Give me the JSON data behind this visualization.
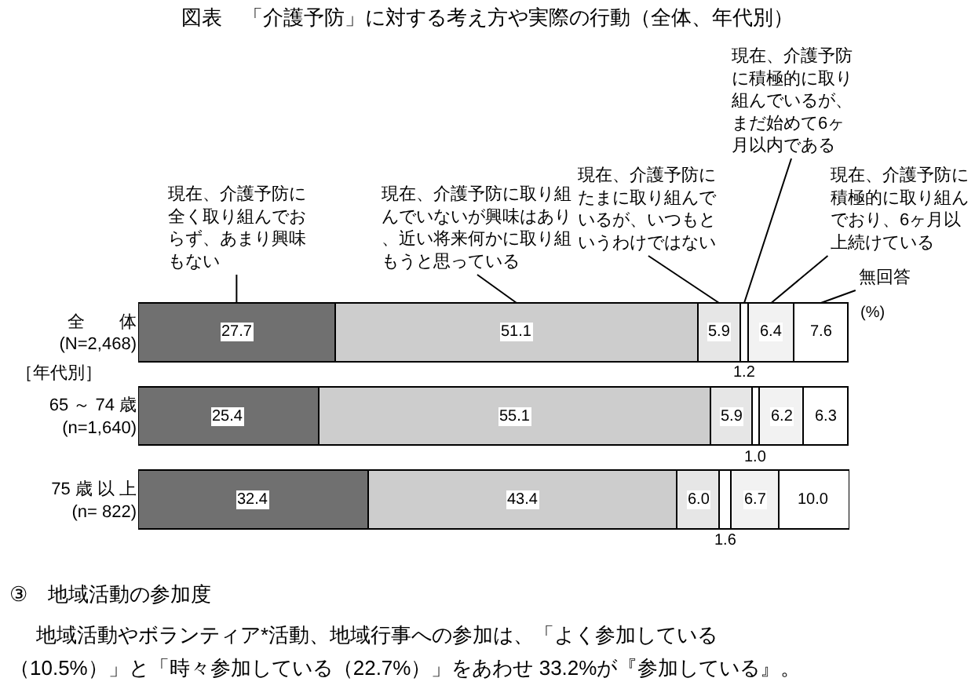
{
  "chart_data": {
    "type": "bar",
    "orientation": "horizontal",
    "stacked": true,
    "title": "図表　「介護予防」に対する考え方や実際の行動（全体、年代別）",
    "categories": [
      "全　　体\n(N=2,468)",
      "65 ～ 74 歳\n(n=1,640)",
      "75 歳 以 上\n(n= 822)"
    ],
    "series": [
      {
        "name": "現在、介護予防に全く取り組んでおらず、あまり興味もない",
        "color": "#707070",
        "values": [
          27.7,
          25.4,
          32.4
        ],
        "value_labels": [
          "27.7",
          "25.4",
          "32.4"
        ]
      },
      {
        "name": "現在、介護予防に取り組んでいないが興味はあり、近い将来何かに取り組もうと思っている",
        "color": "#cdcdcd",
        "values": [
          51.1,
          55.1,
          43.4
        ],
        "value_labels": [
          "51.1",
          "55.1",
          "43.4"
        ]
      },
      {
        "name": "現在、介護予防にたまに取り組んでいるが、いつもというわけではない",
        "color": "#e6e6e6",
        "values": [
          5.9,
          5.9,
          6.0
        ],
        "value_labels": [
          "5.9",
          "5.9",
          "6.0"
        ]
      },
      {
        "name": "現在、介護予防に積極的に取り組んでいるが、まだ始めて6ヶ月以内である",
        "color": "#ffffff",
        "values": [
          1.2,
          1.0,
          1.6
        ],
        "value_labels": [
          "1.2",
          "1.0",
          "1.6"
        ]
      },
      {
        "name": "現在、介護予防に積極的に取り組んでおり、6ヶ月以上続けている",
        "color": "#f2f2f2",
        "values": [
          6.4,
          6.2,
          6.7
        ],
        "value_labels": [
          "6.4",
          "6.2",
          "6.7"
        ]
      },
      {
        "name": "無回答",
        "color": "#ffffff",
        "values": [
          7.6,
          6.3,
          10.0
        ],
        "value_labels": [
          "7.6",
          "6.3",
          "10.0"
        ]
      }
    ],
    "xlim": [
      0,
      100.1
    ],
    "tick_labels": "y",
    "annotations": [
      "［年代別］",
      "(%)",
      "③　地域活動の参加度",
      "地域活動やボランティア*活動、地域行事への参加は、「よく参加している",
      "（10.5%）」と「時々参加している（22.7%）」をあわせ 33.2%が『参加している』。"
    ]
  }
}
